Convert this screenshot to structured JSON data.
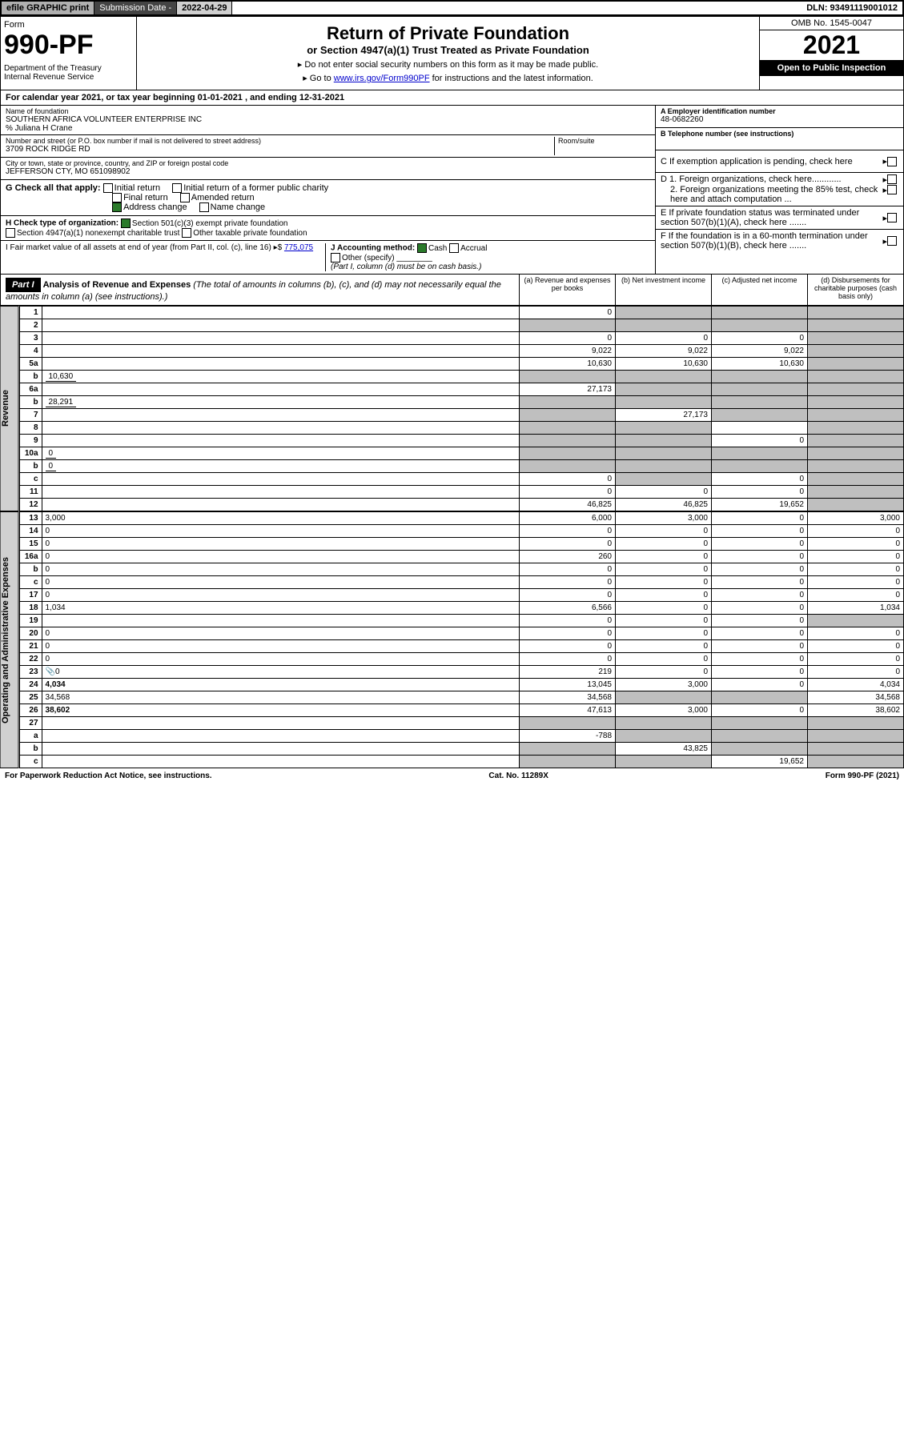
{
  "topbar": {
    "efile": "efile GRAPHIC print",
    "subdate_label": "Submission Date - ",
    "subdate": "2022-04-29",
    "dln": "DLN: 93491119001012"
  },
  "header": {
    "form_label": "Form",
    "form_num": "990-PF",
    "dept": "Department of the Treasury",
    "irs": "Internal Revenue Service",
    "title": "Return of Private Foundation",
    "subtitle": "or Section 4947(a)(1) Trust Treated as Private Foundation",
    "inst1": "▸ Do not enter social security numbers on this form as it may be made public.",
    "inst2_pre": "▸ Go to ",
    "inst2_link": "www.irs.gov/Form990PF",
    "inst2_post": " for instructions and the latest information.",
    "omb": "OMB No. 1545-0047",
    "year": "2021",
    "open": "Open to Public Inspection"
  },
  "calyear": {
    "text_pre": "For calendar year 2021, or tax year beginning ",
    "begin": "01-01-2021",
    "text_mid": " , and ending ",
    "end": "12-31-2021"
  },
  "name_block": {
    "name_lbl": "Name of foundation",
    "name": "SOUTHERN AFRICA VOLUNTEER ENTERPRISE INC",
    "care": "% Juliana H Crane",
    "addr_lbl": "Number and street (or P.O. box number if mail is not delivered to street address)",
    "addr": "3709 ROCK RIDGE RD",
    "room_lbl": "Room/suite",
    "city_lbl": "City or town, state or province, country, and ZIP or foreign postal code",
    "city": "JEFFERSON CTY, MO  651098902"
  },
  "right_block": {
    "a_lbl": "A Employer identification number",
    "ein": "48-0682260",
    "b_lbl": "B Telephone number (see instructions)",
    "c_lbl": "C If exemption application is pending, check here",
    "d1": "D 1. Foreign organizations, check here............",
    "d2": "2. Foreign organizations meeting the 85% test, check here and attach computation ...",
    "e": "E If private foundation status was terminated under section 507(b)(1)(A), check here .......",
    "f": "F If the foundation is in a 60-month termination under section 507(b)(1)(B), check here .......",
    "arrow": "▸"
  },
  "g_checks": {
    "label": "G Check all that apply:",
    "initial": "Initial return",
    "initial_former": "Initial return of a former public charity",
    "final": "Final return",
    "amended": "Amended return",
    "address": "Address change",
    "name": "Name change"
  },
  "h_block": {
    "label": "H Check type of organization:",
    "c3": "Section 501(c)(3) exempt private foundation",
    "trust": "Section 4947(a)(1) nonexempt charitable trust",
    "other": "Other taxable private foundation"
  },
  "i_block": {
    "label": "I Fair market value of all assets at end of year (from Part II, col. (c), line 16) ▸$",
    "value": "775,075"
  },
  "j_block": {
    "label": "J Accounting method:",
    "cash": "Cash",
    "accrual": "Accrual",
    "other": "Other (specify)",
    "note": "(Part I, column (d) must be on cash basis.)"
  },
  "part1": {
    "header": "Part I",
    "title": "Analysis of Revenue and Expenses",
    "note": "(The total of amounts in columns (b), (c), and (d) may not necessarily equal the amounts in column (a) (see instructions).)",
    "col_a": "(a) Revenue and expenses per books",
    "col_b": "(b) Net investment income",
    "col_c": "(c) Adjusted net income",
    "col_d": "(d) Disbursements for charitable purposes (cash basis only)"
  },
  "sidebars": {
    "revenue": "Revenue",
    "expenses": "Operating and Administrative Expenses"
  },
  "rows": [
    {
      "n": "1",
      "d": "",
      "a": "0",
      "b": "",
      "c": "",
      "ash": false,
      "bsh": true,
      "csh": true,
      "dsh": true
    },
    {
      "n": "2",
      "d": "",
      "a": "",
      "b": "",
      "c": "",
      "ash": true,
      "bsh": true,
      "csh": true,
      "dsh": true
    },
    {
      "n": "3",
      "d": "",
      "a": "0",
      "b": "0",
      "c": "0",
      "ash": false,
      "bsh": false,
      "csh": false,
      "dsh": true
    },
    {
      "n": "4",
      "d": "",
      "a": "9,022",
      "b": "9,022",
      "c": "9,022",
      "ash": false,
      "bsh": false,
      "csh": false,
      "dsh": true
    },
    {
      "n": "5a",
      "d": "",
      "a": "10,630",
      "b": "10,630",
      "c": "10,630",
      "ash": false,
      "bsh": false,
      "csh": false,
      "dsh": true
    },
    {
      "n": "b",
      "d": "",
      "inline": "10,630",
      "a": "",
      "b": "",
      "c": "",
      "ash": true,
      "bsh": true,
      "csh": true,
      "dsh": true
    },
    {
      "n": "6a",
      "d": "",
      "a": "27,173",
      "b": "",
      "c": "",
      "ash": false,
      "bsh": true,
      "csh": true,
      "dsh": true
    },
    {
      "n": "b",
      "d": "",
      "inline": "28,291",
      "a": "",
      "b": "",
      "c": "",
      "ash": true,
      "bsh": true,
      "csh": true,
      "dsh": true
    },
    {
      "n": "7",
      "d": "",
      "a": "",
      "b": "27,173",
      "c": "",
      "ash": true,
      "bsh": false,
      "csh": true,
      "dsh": true
    },
    {
      "n": "8",
      "d": "",
      "a": "",
      "b": "",
      "c": "",
      "ash": true,
      "bsh": true,
      "csh": false,
      "dsh": true
    },
    {
      "n": "9",
      "d": "",
      "a": "",
      "b": "",
      "c": "0",
      "ash": true,
      "bsh": true,
      "csh": false,
      "dsh": true
    },
    {
      "n": "10a",
      "d": "",
      "inline": "0",
      "a": "",
      "b": "",
      "c": "",
      "ash": true,
      "bsh": true,
      "csh": true,
      "dsh": true
    },
    {
      "n": "b",
      "d": "",
      "inline": "0",
      "a": "",
      "b": "",
      "c": "",
      "ash": true,
      "bsh": true,
      "csh": true,
      "dsh": true
    },
    {
      "n": "c",
      "d": "",
      "a": "0",
      "b": "",
      "c": "0",
      "ash": false,
      "bsh": true,
      "csh": false,
      "dsh": true
    },
    {
      "n": "11",
      "d": "",
      "a": "0",
      "b": "0",
      "c": "0",
      "ash": false,
      "bsh": false,
      "csh": false,
      "dsh": true
    },
    {
      "n": "12",
      "d": "",
      "a": "46,825",
      "b": "46,825",
      "c": "19,652",
      "bold": true,
      "ash": false,
      "bsh": false,
      "csh": false,
      "dsh": true
    },
    {
      "n": "13",
      "d": "3,000",
      "a": "6,000",
      "b": "3,000",
      "c": "0",
      "sec": "exp"
    },
    {
      "n": "14",
      "d": "0",
      "a": "0",
      "b": "0",
      "c": "0",
      "sec": "exp"
    },
    {
      "n": "15",
      "d": "0",
      "a": "0",
      "b": "0",
      "c": "0",
      "sec": "exp"
    },
    {
      "n": "16a",
      "d": "0",
      "a": "260",
      "b": "0",
      "c": "0",
      "sec": "exp"
    },
    {
      "n": "b",
      "d": "0",
      "a": "0",
      "b": "0",
      "c": "0",
      "sec": "exp"
    },
    {
      "n": "c",
      "d": "0",
      "a": "0",
      "b": "0",
      "c": "0",
      "sec": "exp"
    },
    {
      "n": "17",
      "d": "0",
      "a": "0",
      "b": "0",
      "c": "0",
      "sec": "exp"
    },
    {
      "n": "18",
      "d": "1,034",
      "a": "6,566",
      "b": "0",
      "c": "0",
      "sec": "exp"
    },
    {
      "n": "19",
      "d": "",
      "a": "0",
      "b": "0",
      "c": "0",
      "sec": "exp",
      "dsh": true
    },
    {
      "n": "20",
      "d": "0",
      "a": "0",
      "b": "0",
      "c": "0",
      "sec": "exp"
    },
    {
      "n": "21",
      "d": "0",
      "a": "0",
      "b": "0",
      "c": "0",
      "sec": "exp"
    },
    {
      "n": "22",
      "d": "0",
      "a": "0",
      "b": "0",
      "c": "0",
      "sec": "exp"
    },
    {
      "n": "23",
      "d": "0",
      "a": "219",
      "b": "0",
      "c": "0",
      "sec": "exp",
      "icon": "📎"
    },
    {
      "n": "24",
      "d": "4,034",
      "a": "13,045",
      "b": "3,000",
      "c": "0",
      "bold": true,
      "sec": "exp"
    },
    {
      "n": "25",
      "d": "34,568",
      "a": "34,568",
      "b": "",
      "c": "",
      "sec": "exp",
      "bsh": true,
      "csh": true
    },
    {
      "n": "26",
      "d": "38,602",
      "a": "47,613",
      "b": "3,000",
      "c": "0",
      "bold": true,
      "sec": "exp"
    },
    {
      "n": "27",
      "d": "",
      "a": "",
      "b": "",
      "c": "",
      "sec": "exp",
      "ash": true,
      "bsh": true,
      "csh": true,
      "dsh": true
    },
    {
      "n": "a",
      "d": "",
      "a": "-788",
      "b": "",
      "c": "",
      "bold": true,
      "sec": "exp",
      "bsh": true,
      "csh": true,
      "dsh": true
    },
    {
      "n": "b",
      "d": "",
      "a": "",
      "b": "43,825",
      "c": "",
      "bold": true,
      "sec": "exp",
      "ash": true,
      "csh": true,
      "dsh": true
    },
    {
      "n": "c",
      "d": "",
      "a": "",
      "b": "",
      "c": "19,652",
      "bold": true,
      "sec": "exp",
      "ash": true,
      "bsh": true,
      "dsh": true
    }
  ],
  "footer": {
    "left": "For Paperwork Reduction Act Notice, see instructions.",
    "mid": "Cat. No. 11289X",
    "right": "Form 990-PF (2021)"
  },
  "colors": {
    "shaded": "#bfbfbf",
    "link": "#0000cc",
    "check_on": "#2a7a2a"
  }
}
